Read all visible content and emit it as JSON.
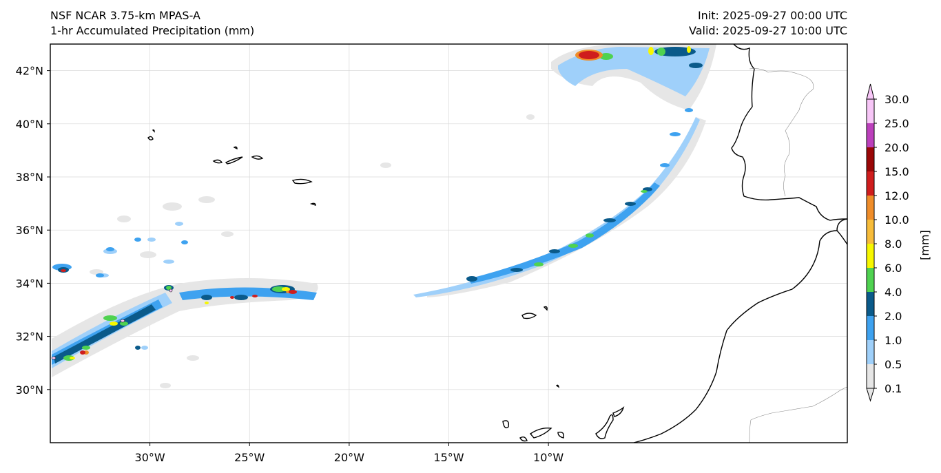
{
  "header": {
    "model": "NSF NCAR 3.75-km MPAS-A",
    "field": "1-hr Accumulated Precipitation (mm)",
    "init": "Init: 2025-09-27 00:00 UTC",
    "valid": "Valid: 2025-09-27 10:00 UTC"
  },
  "map": {
    "lon_range": [
      -35,
      5
    ],
    "lat_range": [
      28,
      43
    ],
    "lat_ticks": [
      {
        "value": 42,
        "label": "42°N"
      },
      {
        "value": 40,
        "label": "40°N"
      },
      {
        "value": 38,
        "label": "38°N"
      },
      {
        "value": 36,
        "label": "36°N"
      },
      {
        "value": 34,
        "label": "34°N"
      },
      {
        "value": 32,
        "label": "32°N"
      },
      {
        "value": 30,
        "label": "30°N"
      }
    ],
    "lon_ticks": [
      {
        "value": -30,
        "label": "30°W"
      },
      {
        "value": -25,
        "label": "25°W"
      },
      {
        "value": -20,
        "label": "20°W"
      },
      {
        "value": -15,
        "label": "15°W"
      },
      {
        "value": -10,
        "label": "10°W"
      }
    ]
  },
  "colorbar": {
    "unit_label": "[mm]",
    "levels": [
      "0.1",
      "0.5",
      "1.0",
      "2.0",
      "4.0",
      "6.0",
      "8.0",
      "10.0",
      "12.0",
      "15.0",
      "20.0",
      "25.0",
      "30.0"
    ],
    "colors": [
      "#e6e6e6",
      "#9fd0fa",
      "#3ea2f0",
      "#0a5a8a",
      "#4fd250",
      "#f7f700",
      "#f7bc3a",
      "#ef8d2a",
      "#cf1d1d",
      "#9a0707",
      "#bc40bc",
      "#f7c6f7"
    ]
  },
  "colors": {
    "frame": "#000000",
    "grid": "#d8d8d8"
  }
}
